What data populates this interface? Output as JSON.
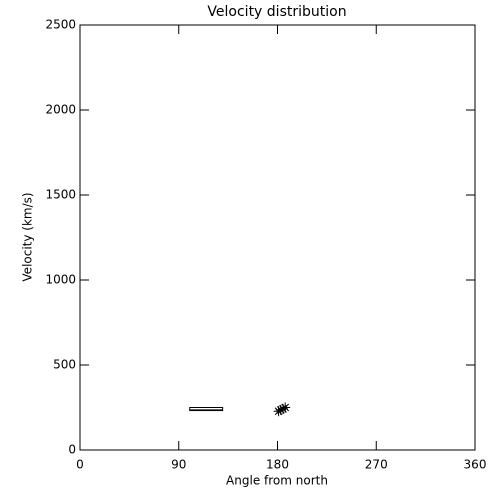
{
  "chart_data": {
    "type": "scatter",
    "title": "Velocity distribution",
    "x_label": "Angle from north",
    "y_label": "Velocity (km/s)",
    "xlim": [
      0,
      360
    ],
    "xticks": [
      0,
      90,
      180,
      270,
      360
    ],
    "ylim": [
      0,
      2500
    ],
    "yticks": [
      0,
      500,
      1000,
      1500,
      2000,
      2500
    ],
    "box": {
      "x": [
        100,
        130
      ],
      "low": 232,
      "high": 250,
      "median": 236
    },
    "x": [
      181,
      183,
      185,
      187
    ],
    "values": [
      228,
      236,
      242,
      250
    ],
    "color": "#000000"
  }
}
